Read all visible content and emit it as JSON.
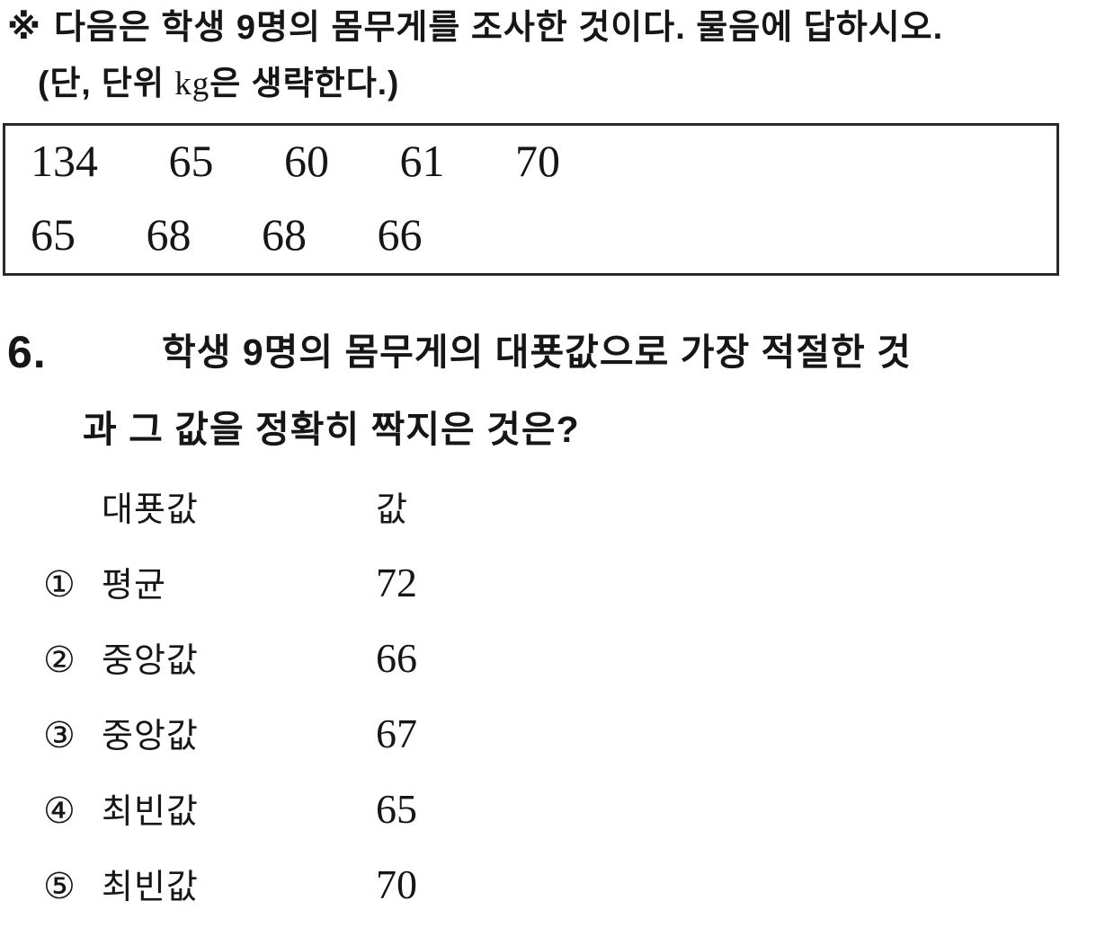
{
  "colors": {
    "text": "#161616",
    "background": "#ffffff",
    "box_border": "#2a2a2a"
  },
  "instruction": {
    "marker": "※",
    "line1": "다음은 학생 9명의 몸무게를 조사한 것이다. 물음에 답하시오.",
    "line2_prefix": "(단, 단위 ",
    "line2_unit": "kg",
    "line2_suffix": "은 생략한다.)"
  },
  "data_box": {
    "rows": [
      [
        "134",
        "65",
        "60",
        "61",
        "70"
      ],
      [
        "65",
        "68",
        "68",
        "66"
      ]
    ]
  },
  "question": {
    "number": "6.",
    "line1": "학생 9명의 몸무게의 대푯값으로 가장 적절한 것",
    "line2": "과 그 값을 정확히 짝지은 것은?"
  },
  "choices": {
    "header": {
      "col1": "대푯값",
      "col2": "값"
    },
    "items": [
      {
        "marker": "①",
        "label": "평균",
        "value": "72"
      },
      {
        "marker": "②",
        "label": "중앙값",
        "value": "66"
      },
      {
        "marker": "③",
        "label": "중앙값",
        "value": "67"
      },
      {
        "marker": "④",
        "label": "최빈값",
        "value": "65"
      },
      {
        "marker": "⑤",
        "label": "최빈값",
        "value": "70"
      }
    ]
  }
}
